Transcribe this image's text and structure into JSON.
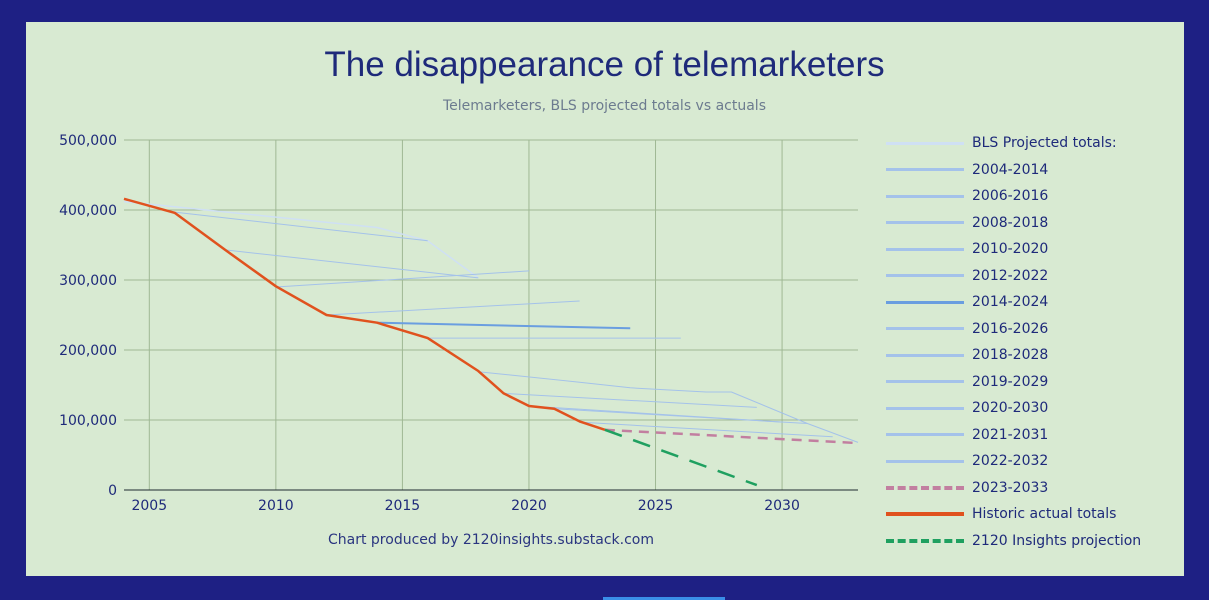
{
  "chart_data": {
    "type": "line",
    "title": "The disappearance of telemarketers",
    "subtitle": "Telemarketers, BLS projected totals vs actuals",
    "credit": "Chart produced by 2120insights.substack.com",
    "xlim": [
      2004,
      2033
    ],
    "ylim": [
      0,
      500000
    ],
    "x_ticks": [
      2005,
      2010,
      2015,
      2020,
      2025,
      2030
    ],
    "y_ticks": [
      0,
      100000,
      200000,
      300000,
      400000,
      500000
    ],
    "x_tick_labels": [
      "2005",
      "2010",
      "2015",
      "2020",
      "2025",
      "2030"
    ],
    "y_tick_labels": [
      "0",
      "100,000",
      "200,000",
      "300,000",
      "400,000",
      "500,000"
    ],
    "grid": true,
    "legend_position": "right",
    "series": [
      {
        "name": "BLS Projected totals:",
        "color": "#cfe0f4",
        "width": 1.5,
        "style": "solid",
        "points": [
          [
            2004,
            412000
          ],
          [
            2014,
            375000
          ],
          [
            2016,
            356000
          ],
          [
            2018,
            303000
          ]
        ]
      },
      {
        "name": "2004-2014",
        "color": "#a4c2ea",
        "width": 1,
        "style": "solid",
        "points": [
          [
            2006,
            397000
          ],
          [
            2016,
            356000
          ]
        ]
      },
      {
        "name": "2006-2016",
        "color": "#a4c2ea",
        "width": 1,
        "style": "solid",
        "points": [
          [
            2008,
            343000
          ],
          [
            2018,
            303000
          ]
        ]
      },
      {
        "name": "2008-2018",
        "color": "#a4c2ea",
        "width": 1,
        "style": "solid",
        "points": [
          [
            2010,
            290000
          ],
          [
            2020,
            313000
          ]
        ]
      },
      {
        "name": "2010-2020",
        "color": "#a4c2ea",
        "width": 1,
        "style": "solid",
        "points": [
          [
            2012,
            250000
          ],
          [
            2022,
            270000
          ]
        ]
      },
      {
        "name": "2012-2022",
        "color": "#a4c2ea",
        "width": 1,
        "style": "solid",
        "points": [
          [
            2014,
            239000
          ],
          [
            2024,
            231000
          ]
        ]
      },
      {
        "name": "2014-2024",
        "color": "#6a9ee0",
        "width": 2,
        "style": "solid",
        "points": [
          [
            2014,
            239000
          ],
          [
            2024,
            231000
          ]
        ]
      },
      {
        "name": "2016-2026",
        "color": "#a4c2ea",
        "width": 1,
        "style": "solid",
        "points": [
          [
            2016,
            217000
          ],
          [
            2026,
            217000
          ]
        ]
      },
      {
        "name": "2018-2028",
        "color": "#a4c2ea",
        "width": 1,
        "style": "solid",
        "points": [
          [
            2018,
            169000
          ],
          [
            2022,
            154000
          ],
          [
            2024,
            146000
          ],
          [
            2027,
            140000
          ],
          [
            2028,
            140000
          ],
          [
            2031,
            95000
          ]
        ]
      },
      {
        "name": "2019-2029",
        "color": "#a4c2ea",
        "width": 1,
        "style": "solid",
        "points": [
          [
            2019,
            138000
          ],
          [
            2029,
            118000
          ]
        ]
      },
      {
        "name": "2020-2030",
        "color": "#a4c2ea",
        "width": 1,
        "style": "solid",
        "points": [
          [
            2020,
            120000
          ],
          [
            2030,
            97000
          ]
        ]
      },
      {
        "name": "2021-2031",
        "color": "#a4c2ea",
        "width": 1,
        "style": "solid",
        "points": [
          [
            2021,
            116000
          ],
          [
            2031,
            95000
          ],
          [
            2033,
            68000
          ]
        ]
      },
      {
        "name": "2022-2032",
        "color": "#a4c2ea",
        "width": 1,
        "style": "solid",
        "points": [
          [
            2022,
            97000
          ],
          [
            2032,
            76000
          ]
        ]
      },
      {
        "name": "2023-2033",
        "color": "#c27fa0",
        "width": 2.5,
        "style": "dashed",
        "points": [
          [
            2023,
            86000
          ],
          [
            2033,
            67000
          ]
        ]
      },
      {
        "name": "Historic actual totals",
        "color": "#e0521e",
        "width": 2.5,
        "style": "solid",
        "points": [
          [
            2004,
            416000
          ],
          [
            2006,
            396000
          ],
          [
            2008,
            343000
          ],
          [
            2010,
            291000
          ],
          [
            2012,
            250000
          ],
          [
            2014,
            239000
          ],
          [
            2016,
            217000
          ],
          [
            2018,
            170000
          ],
          [
            2019,
            138000
          ],
          [
            2020,
            120000
          ],
          [
            2021,
            116000
          ],
          [
            2022,
            98000
          ],
          [
            2023,
            86000
          ]
        ]
      },
      {
        "name": "2120 Insights projection",
        "color": "#1fa060",
        "width": 2.5,
        "style": "longdash",
        "points": [
          [
            2023,
            86000
          ],
          [
            2029,
            7000
          ]
        ]
      }
    ]
  }
}
